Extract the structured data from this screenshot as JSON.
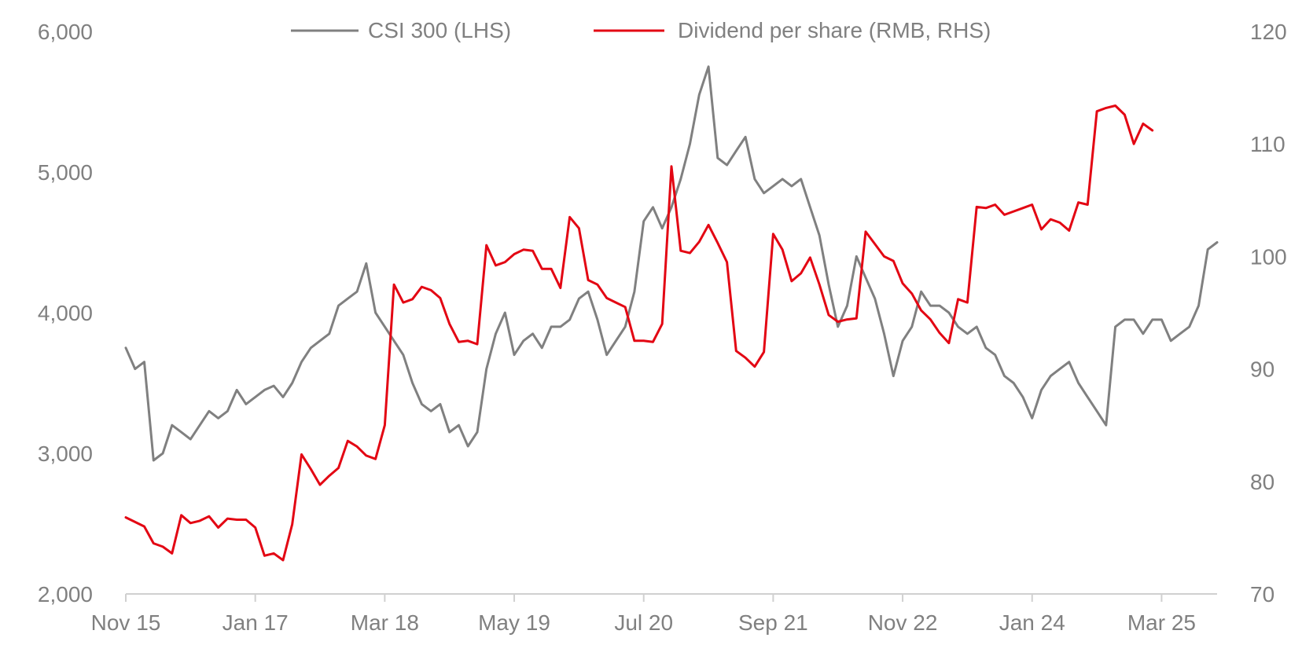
{
  "chart_data": {
    "type": "line",
    "title": "",
    "xlabel": "",
    "ylabel_left": "",
    "ylabel_right": "",
    "x_tick_labels": [
      "Nov 15",
      "Jan 17",
      "Mar 18",
      "May 19",
      "Jul 20",
      "Sep 21",
      "Nov 22",
      "Jan 24",
      "Mar 25"
    ],
    "left_axis": {
      "ticks": [
        2000,
        3000,
        4000,
        5000,
        6000
      ],
      "tick_labels": [
        "2,000",
        "3,000",
        "4,000",
        "5,000",
        "6,000"
      ],
      "ylim": [
        2000,
        6000
      ]
    },
    "right_axis": {
      "ticks": [
        70,
        80,
        90,
        100,
        110,
        120
      ],
      "tick_labels": [
        "70",
        "80",
        "90",
        "100",
        "110",
        "120"
      ],
      "ylim": [
        70,
        120
      ]
    },
    "legend_position": "top-center",
    "grid": false,
    "series": [
      {
        "name": "CSI 300 (LHS)",
        "axis": "left",
        "color": "#808080",
        "points": [
          [
            "2015-11",
            3750
          ],
          [
            "2015-12",
            3600
          ],
          [
            "2016-01",
            3650
          ],
          [
            "2016-02",
            2950
          ],
          [
            "2016-03",
            3000
          ],
          [
            "2016-04",
            3200
          ],
          [
            "2016-05",
            3150
          ],
          [
            "2016-06",
            3100
          ],
          [
            "2016-07",
            3200
          ],
          [
            "2016-08",
            3300
          ],
          [
            "2016-09",
            3250
          ],
          [
            "2016-10",
            3300
          ],
          [
            "2016-11",
            3450
          ],
          [
            "2016-12",
            3350
          ],
          [
            "2017-01",
            3400
          ],
          [
            "2017-02",
            3450
          ],
          [
            "2017-03",
            3480
          ],
          [
            "2017-04",
            3400
          ],
          [
            "2017-05",
            3500
          ],
          [
            "2017-06",
            3650
          ],
          [
            "2017-07",
            3750
          ],
          [
            "2017-08",
            3800
          ],
          [
            "2017-09",
            3850
          ],
          [
            "2017-10",
            4050
          ],
          [
            "2017-11",
            4100
          ],
          [
            "2017-12",
            4150
          ],
          [
            "2018-01",
            4350
          ],
          [
            "2018-02",
            4000
          ],
          [
            "2018-03",
            3900
          ],
          [
            "2018-04",
            3800
          ],
          [
            "2018-05",
            3700
          ],
          [
            "2018-06",
            3500
          ],
          [
            "2018-07",
            3350
          ],
          [
            "2018-08",
            3300
          ],
          [
            "2018-09",
            3350
          ],
          [
            "2018-10",
            3150
          ],
          [
            "2018-11",
            3200
          ],
          [
            "2018-12",
            3050
          ],
          [
            "2019-01",
            3150
          ],
          [
            "2019-02",
            3600
          ],
          [
            "2019-03",
            3850
          ],
          [
            "2019-04",
            4000
          ],
          [
            "2019-05",
            3700
          ],
          [
            "2019-06",
            3800
          ],
          [
            "2019-07",
            3850
          ],
          [
            "2019-08",
            3750
          ],
          [
            "2019-09",
            3900
          ],
          [
            "2019-10",
            3900
          ],
          [
            "2019-11",
            3950
          ],
          [
            "2019-12",
            4100
          ],
          [
            "2020-01",
            4150
          ],
          [
            "2020-02",
            3950
          ],
          [
            "2020-03",
            3700
          ],
          [
            "2020-04",
            3800
          ],
          [
            "2020-05",
            3900
          ],
          [
            "2020-06",
            4150
          ],
          [
            "2020-07",
            4650
          ],
          [
            "2020-08",
            4750
          ],
          [
            "2020-09",
            4600
          ],
          [
            "2020-10",
            4750
          ],
          [
            "2020-11",
            4950
          ],
          [
            "2020-12",
            5200
          ],
          [
            "2021-01",
            5550
          ],
          [
            "2021-02",
            5750
          ],
          [
            "2021-03",
            5100
          ],
          [
            "2021-04",
            5050
          ],
          [
            "2021-05",
            5150
          ],
          [
            "2021-06",
            5250
          ],
          [
            "2021-07",
            4950
          ],
          [
            "2021-08",
            4850
          ],
          [
            "2021-09",
            4900
          ],
          [
            "2021-10",
            4950
          ],
          [
            "2021-11",
            4900
          ],
          [
            "2021-12",
            4950
          ],
          [
            "2022-01",
            4750
          ],
          [
            "2022-02",
            4550
          ],
          [
            "2022-03",
            4200
          ],
          [
            "2022-04",
            3900
          ],
          [
            "2022-05",
            4050
          ],
          [
            "2022-06",
            4400
          ],
          [
            "2022-07",
            4250
          ],
          [
            "2022-08",
            4100
          ],
          [
            "2022-09",
            3850
          ],
          [
            "2022-10",
            3550
          ],
          [
            "2022-11",
            3800
          ],
          [
            "2022-12",
            3900
          ],
          [
            "2023-01",
            4150
          ],
          [
            "2023-02",
            4050
          ],
          [
            "2023-03",
            4050
          ],
          [
            "2023-04",
            4000
          ],
          [
            "2023-05",
            3900
          ],
          [
            "2023-06",
            3850
          ],
          [
            "2023-07",
            3900
          ],
          [
            "2023-08",
            3750
          ],
          [
            "2023-09",
            3700
          ],
          [
            "2023-10",
            3550
          ],
          [
            "2023-11",
            3500
          ],
          [
            "2023-12",
            3400
          ],
          [
            "2024-01",
            3250
          ],
          [
            "2024-02",
            3450
          ],
          [
            "2024-03",
            3550
          ],
          [
            "2024-04",
            3600
          ],
          [
            "2024-05",
            3650
          ],
          [
            "2024-06",
            3500
          ],
          [
            "2024-07",
            3400
          ],
          [
            "2024-08",
            3300
          ],
          [
            "2024-09",
            3200
          ],
          [
            "2024-10",
            3900
          ],
          [
            "2024-11",
            3950
          ],
          [
            "2024-12",
            3950
          ],
          [
            "2025-01",
            3850
          ],
          [
            "2025-02",
            3950
          ],
          [
            "2025-03",
            3950
          ],
          [
            "2025-04",
            3800
          ],
          [
            "2025-05",
            3850
          ],
          [
            "2025-06",
            3900
          ],
          [
            "2025-07",
            4050
          ],
          [
            "2025-08",
            4450
          ],
          [
            "2025-09",
            4500
          ]
        ]
      },
      {
        "name": "Dividend per share (RMB, RHS)",
        "axis": "right",
        "color": "#e30613",
        "points": [
          [
            "2015-11",
            76.8
          ],
          [
            "2016-01",
            76.0
          ],
          [
            "2016-02",
            74.5
          ],
          [
            "2016-03",
            74.2
          ],
          [
            "2016-04",
            73.6
          ],
          [
            "2016-05",
            77.0
          ],
          [
            "2016-06",
            76.3
          ],
          [
            "2016-07",
            76.5
          ],
          [
            "2016-08",
            76.9
          ],
          [
            "2016-09",
            75.9
          ],
          [
            "2016-10",
            76.7
          ],
          [
            "2016-11",
            76.6
          ],
          [
            "2016-12",
            76.6
          ],
          [
            "2017-01",
            75.9
          ],
          [
            "2017-02",
            73.4
          ],
          [
            "2017-03",
            73.6
          ],
          [
            "2017-04",
            73.0
          ],
          [
            "2017-05",
            76.2
          ],
          [
            "2017-06",
            82.4
          ],
          [
            "2017-07",
            81.1
          ],
          [
            "2017-08",
            79.7
          ],
          [
            "2017-09",
            80.5
          ],
          [
            "2017-10",
            81.2
          ],
          [
            "2017-11",
            83.6
          ],
          [
            "2017-12",
            83.1
          ],
          [
            "2018-01",
            82.3
          ],
          [
            "2018-02",
            82.0
          ],
          [
            "2018-03",
            85.0
          ],
          [
            "2018-04",
            97.5
          ],
          [
            "2018-05",
            95.9
          ],
          [
            "2018-06",
            96.2
          ],
          [
            "2018-07",
            97.3
          ],
          [
            "2018-08",
            97.0
          ],
          [
            "2018-09",
            96.3
          ],
          [
            "2018-10",
            94.0
          ],
          [
            "2018-11",
            92.4
          ],
          [
            "2018-12",
            92.5
          ],
          [
            "2019-01",
            92.2
          ],
          [
            "2019-02",
            101.0
          ],
          [
            "2019-03",
            99.2
          ],
          [
            "2019-04",
            99.5
          ],
          [
            "2019-05",
            100.2
          ],
          [
            "2019-06",
            100.6
          ],
          [
            "2019-07",
            100.5
          ],
          [
            "2019-08",
            98.9
          ],
          [
            "2019-09",
            98.9
          ],
          [
            "2019-10",
            97.2
          ],
          [
            "2019-11",
            103.5
          ],
          [
            "2019-12",
            102.5
          ],
          [
            "2020-01",
            97.9
          ],
          [
            "2020-02",
            97.5
          ],
          [
            "2020-03",
            96.3
          ],
          [
            "2020-04",
            95.9
          ],
          [
            "2020-05",
            95.5
          ],
          [
            "2020-06",
            92.5
          ],
          [
            "2020-07",
            92.5
          ],
          [
            "2020-08",
            92.4
          ],
          [
            "2020-09",
            94.0
          ],
          [
            "2020-10",
            108.0
          ],
          [
            "2020-11",
            100.5
          ],
          [
            "2020-12",
            100.3
          ],
          [
            "2021-01",
            101.3
          ],
          [
            "2021-02",
            102.8
          ],
          [
            "2021-03",
            101.2
          ],
          [
            "2021-04",
            99.5
          ],
          [
            "2021-05",
            91.6
          ],
          [
            "2021-06",
            91.0
          ],
          [
            "2021-07",
            90.2
          ],
          [
            "2021-08",
            91.5
          ],
          [
            "2021-09",
            102.0
          ],
          [
            "2021-10",
            100.6
          ],
          [
            "2021-11",
            97.8
          ],
          [
            "2021-12",
            98.5
          ],
          [
            "2022-01",
            99.9
          ],
          [
            "2022-02",
            97.5
          ],
          [
            "2022-03",
            94.8
          ],
          [
            "2022-04",
            94.2
          ],
          [
            "2022-05",
            94.4
          ],
          [
            "2022-06",
            94.5
          ],
          [
            "2022-07",
            102.2
          ],
          [
            "2022-08",
            101.1
          ],
          [
            "2022-09",
            100.0
          ],
          [
            "2022-10",
            99.6
          ],
          [
            "2022-11",
            97.6
          ],
          [
            "2022-12",
            96.7
          ],
          [
            "2023-01",
            95.2
          ],
          [
            "2023-02",
            94.4
          ],
          [
            "2023-03",
            93.2
          ],
          [
            "2023-04",
            92.3
          ],
          [
            "2023-05",
            96.2
          ],
          [
            "2023-06",
            95.9
          ],
          [
            "2023-07",
            104.4
          ],
          [
            "2023-08",
            104.3
          ],
          [
            "2023-09",
            104.6
          ],
          [
            "2023-10",
            103.7
          ],
          [
            "2023-11",
            104.0
          ],
          [
            "2023-12",
            104.3
          ],
          [
            "2024-01",
            104.6
          ],
          [
            "2024-02",
            102.4
          ],
          [
            "2024-03",
            103.3
          ],
          [
            "2024-04",
            103.0
          ],
          [
            "2024-05",
            102.3
          ],
          [
            "2024-06",
            104.8
          ],
          [
            "2024-07",
            104.6
          ],
          [
            "2024-08",
            112.9
          ],
          [
            "2024-09",
            113.2
          ],
          [
            "2024-10",
            113.4
          ],
          [
            "2024-11",
            112.6
          ],
          [
            "2024-12",
            110.0
          ],
          [
            "2025-01",
            111.8
          ],
          [
            "2025-02",
            111.2
          ]
        ]
      }
    ]
  }
}
